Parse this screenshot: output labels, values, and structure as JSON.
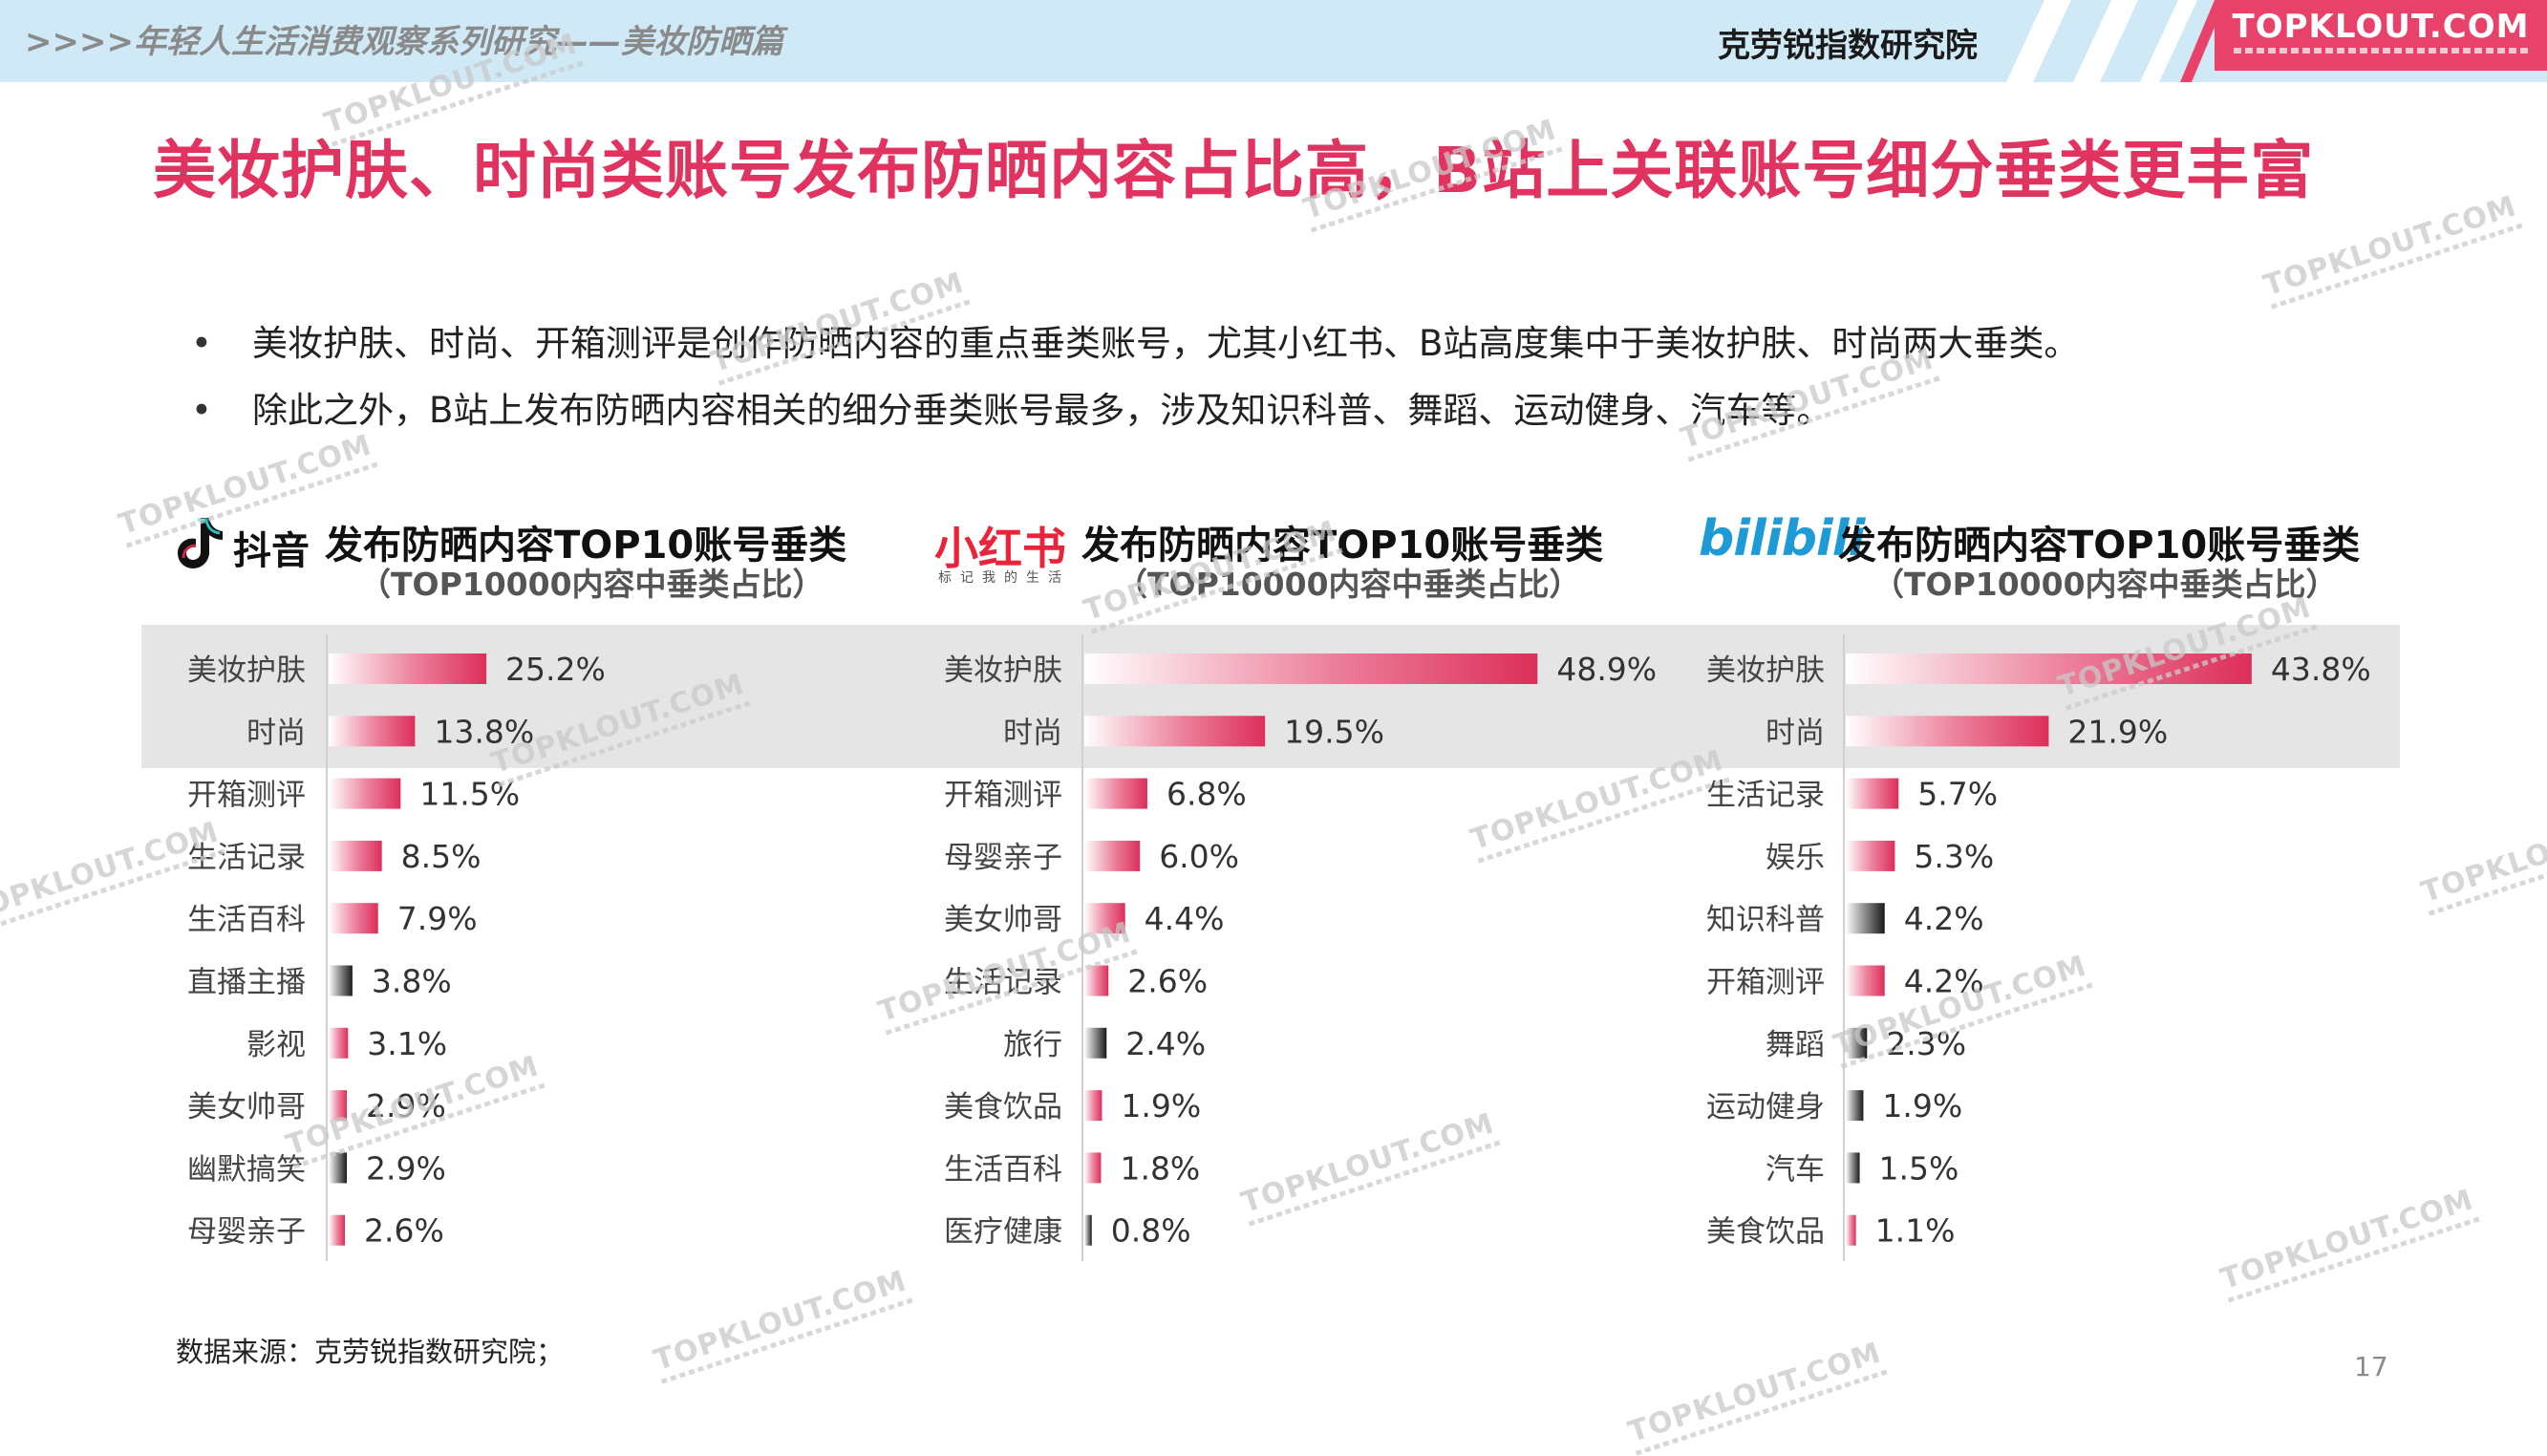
{
  "header": {
    "series_title": ">>>>年轻人生活消费观察系列研究——美妆防晒篇",
    "org": "克劳锐指数研究院",
    "brand": "TOPKLOUT.COM"
  },
  "page_title": "美妆护肤、时尚类账号发布防晒内容占比高，B站上关联账号细分垂类更丰富",
  "bullets": [
    "美妆护肤、时尚、开箱测评是创作防晒内容的重点垂类账号，尤其小红书、B站高度集中于美妆护肤、时尚两大垂类。",
    "除此之外，B站上发布防晒内容相关的细分垂类账号最多，涉及知识科普、舞蹈、运动健身、汽车等。"
  ],
  "panels": [
    {
      "platform": "抖音",
      "title": "发布防晒内容TOP10账号垂类",
      "subtitle": "（TOP10000内容中垂类占比）"
    },
    {
      "platform": "小红书",
      "platform_tag": "标记我的生活",
      "title": "发布防晒内容TOP10账号垂类",
      "subtitle": "（TOP10000内容中垂类占比）"
    },
    {
      "platform": "bilibili",
      "title": "发布防晒内容TOP10账号垂类",
      "subtitle": "（TOP10000内容中垂类占比）"
    }
  ],
  "chart_data": [
    {
      "type": "bar",
      "orientation": "horizontal",
      "title": "抖音 发布防晒内容TOP10账号垂类",
      "categories": [
        "美妆护肤",
        "时尚",
        "开箱测评",
        "生活记录",
        "生活百科",
        "直播主播",
        "影视",
        "美女帅哥",
        "幽默搞笑",
        "母婴亲子"
      ],
      "values": [
        25.2,
        13.8,
        11.5,
        8.5,
        7.9,
        3.8,
        3.1,
        2.9,
        2.9,
        2.6
      ],
      "value_labels": [
        "25.2%",
        "13.8%",
        "11.5%",
        "8.5%",
        "7.9%",
        "3.8%",
        "3.1%",
        "2.9%",
        "2.9%",
        "2.6%"
      ],
      "dark_bars": [
        5,
        8
      ],
      "unit": "%"
    },
    {
      "type": "bar",
      "orientation": "horizontal",
      "title": "小红书 发布防晒内容TOP10账号垂类",
      "categories": [
        "美妆护肤",
        "时尚",
        "开箱测评",
        "母婴亲子",
        "美女帅哥",
        "生活记录",
        "旅行",
        "美食饮品",
        "生活百科",
        "医疗健康"
      ],
      "values": [
        48.9,
        19.5,
        6.8,
        6.0,
        4.4,
        2.6,
        2.4,
        1.9,
        1.8,
        0.8
      ],
      "value_labels": [
        "48.9%",
        "19.5%",
        "6.8%",
        "6.0%",
        "4.4%",
        "2.6%",
        "2.4%",
        "1.9%",
        "1.8%",
        "0.8%"
      ],
      "dark_bars": [
        6,
        9
      ],
      "unit": "%"
    },
    {
      "type": "bar",
      "orientation": "horizontal",
      "title": "bilibili 发布防晒内容TOP10账号垂类",
      "categories": [
        "美妆护肤",
        "时尚",
        "生活记录",
        "娱乐",
        "知识科普",
        "开箱测评",
        "舞蹈",
        "运动健身",
        "汽车",
        "美食饮品"
      ],
      "values": [
        43.8,
        21.9,
        5.7,
        5.3,
        4.2,
        4.2,
        2.3,
        1.9,
        1.5,
        1.1
      ],
      "value_labels": [
        "43.8%",
        "21.9%",
        "5.7%",
        "5.3%",
        "4.2%",
        "4.2%",
        "2.3%",
        "1.9%",
        "1.5%",
        "1.1%"
      ],
      "dark_bars": [
        4,
        6,
        7,
        8
      ],
      "unit": "%"
    }
  ],
  "colors": {
    "accent": "#e0335f",
    "bar_pink": "#e0355e",
    "bar_dark": "#333333",
    "highlight": "#e5e5e5"
  },
  "source": "数据来源：克劳锐指数研究院；",
  "page_number": "17",
  "watermark": "TOPKLOUT.COM"
}
